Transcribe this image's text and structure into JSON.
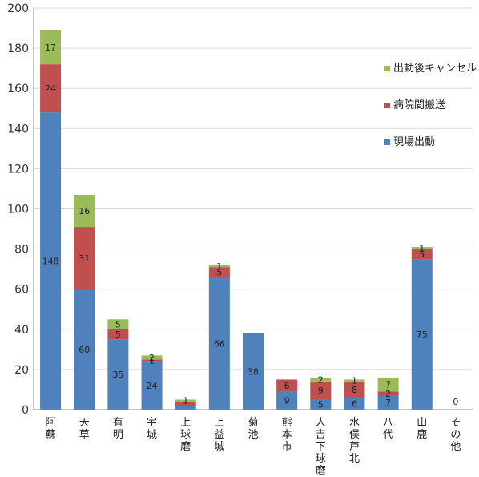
{
  "chart_data": {
    "type": "bar",
    "stacked": true,
    "categories": [
      "阿蘇",
      "天草",
      "有明",
      "宇城",
      "上球磨",
      "上益城",
      "菊池",
      "熊本市",
      "人吉下球磨",
      "水俣芦北",
      "八代",
      "山鹿",
      "その他"
    ],
    "series": [
      {
        "name": "現場出動",
        "color": "#4f81bd",
        "values": [
          148,
          60,
          35,
          24,
          2,
          66,
          38,
          9,
          5,
          6,
          7,
          75,
          0
        ]
      },
      {
        "name": "病院間搬送",
        "color": "#c0504d",
        "values": [
          24,
          31,
          5,
          1,
          2,
          5,
          0,
          6,
          9,
          8,
          2,
          5,
          0
        ]
      },
      {
        "name": "出動後キャンセル",
        "color": "#9bbb59",
        "values": [
          17,
          16,
          5,
          2,
          1,
          1,
          0,
          0,
          2,
          1,
          7,
          1,
          0
        ]
      }
    ],
    "data_labels": [
      [
        "148",
        "24",
        "17"
      ],
      [
        "60",
        "31",
        "16"
      ],
      [
        "35",
        "5",
        "5"
      ],
      [
        "24",
        "1",
        "2"
      ],
      [
        "",
        "",
        "1"
      ],
      [
        "66",
        "5",
        "1"
      ],
      [
        "38",
        "",
        ""
      ],
      [
        "9",
        "6",
        ""
      ],
      [
        "5",
        "9",
        "2"
      ],
      [
        "6",
        "8",
        "1"
      ],
      [
        "7",
        "2",
        "7"
      ],
      [
        "75",
        "5",
        "1"
      ],
      [
        "0",
        "",
        ""
      ]
    ],
    "title": "",
    "xlabel": "",
    "ylabel": "",
    "ylim": [
      0,
      200
    ],
    "yticks": [
      0,
      20,
      40,
      60,
      80,
      100,
      120,
      140,
      160,
      180,
      200
    ],
    "grid": true,
    "legend_position": "right",
    "legend_order": [
      "出動後キャンセル",
      "病院間搬送",
      "現場出動"
    ]
  }
}
